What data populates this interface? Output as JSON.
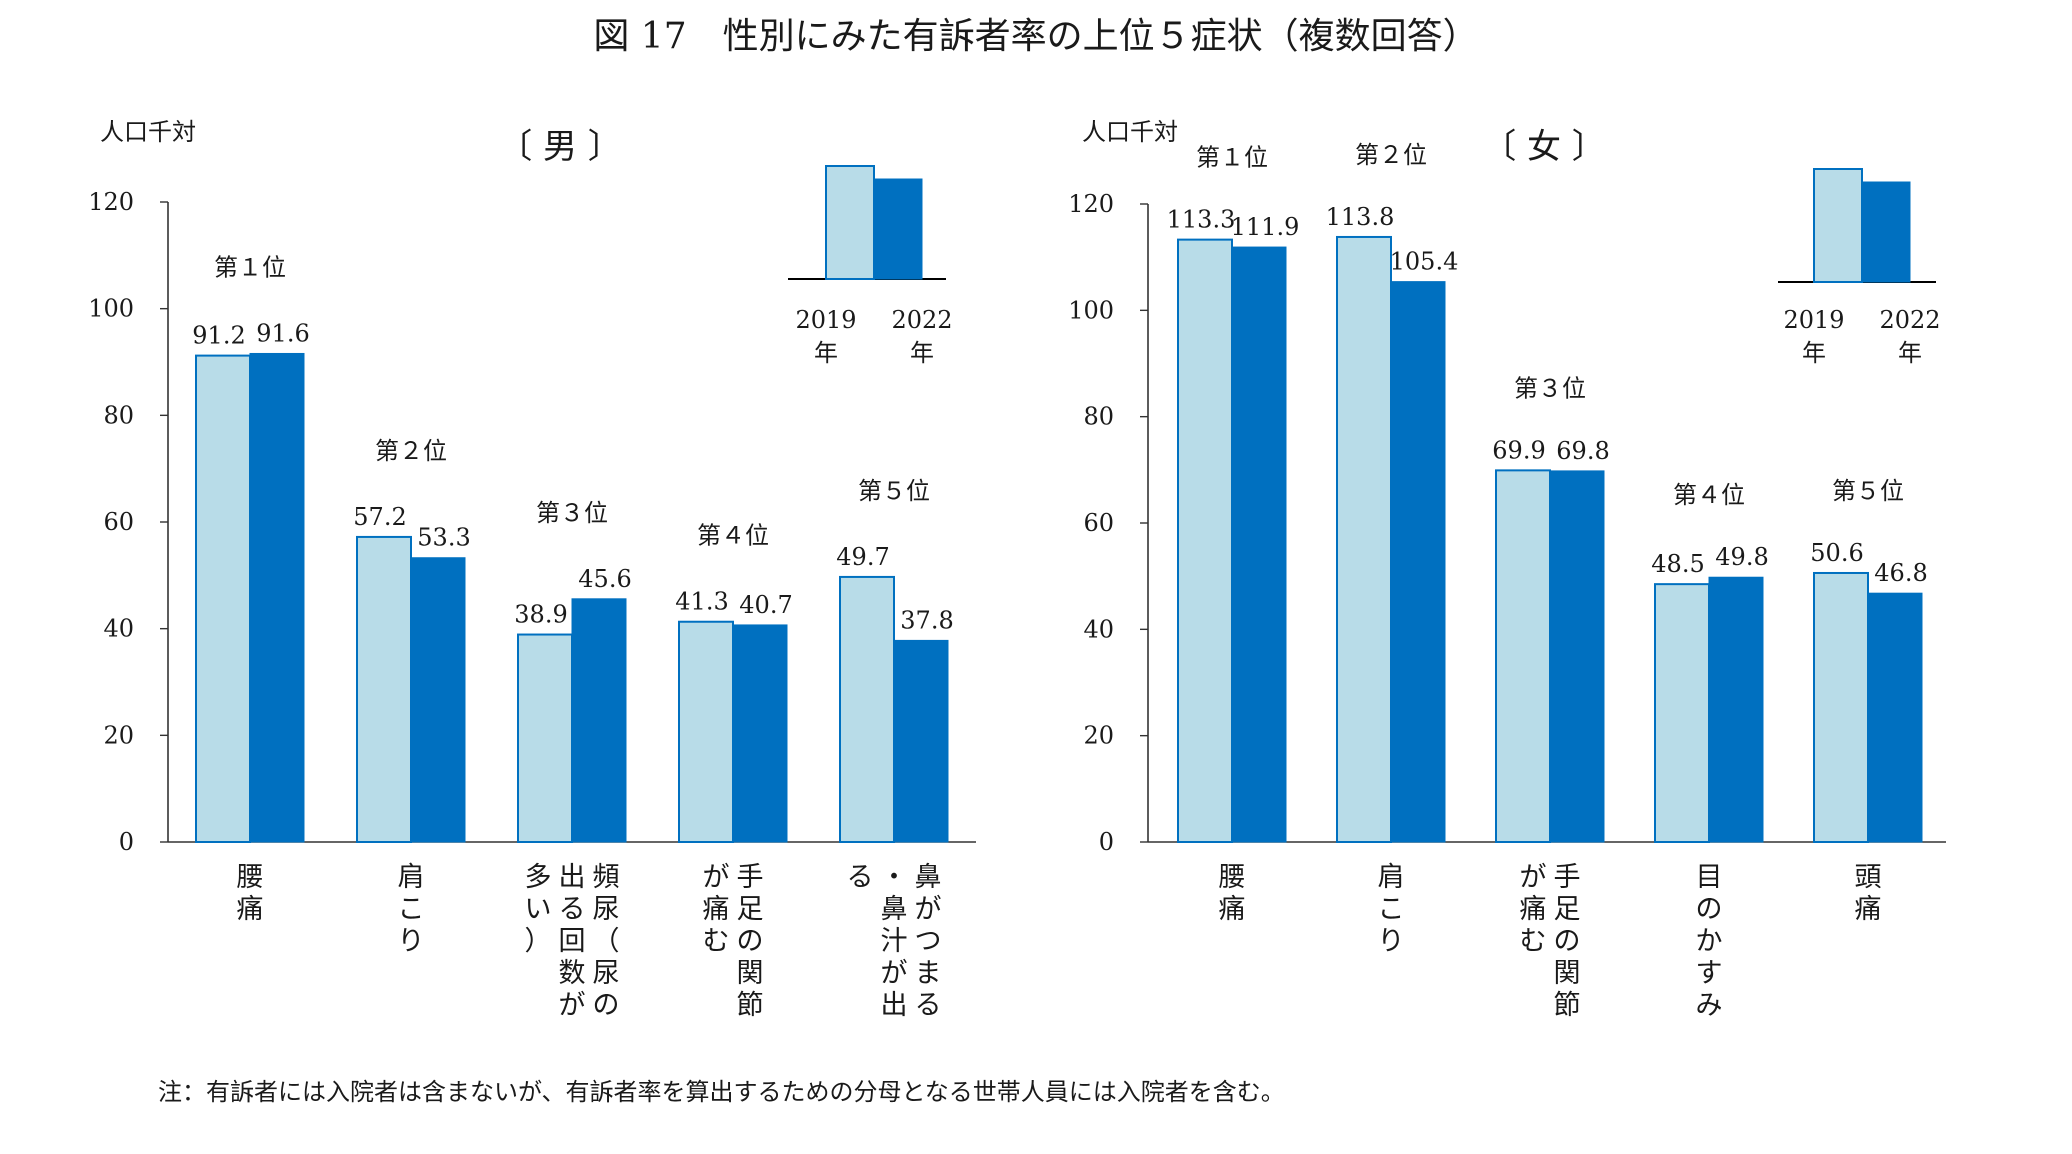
{
  "title": "図 17　性別にみた有訴者率の上位５症状（複数回答）",
  "note": "注：有訴者には入院者は含まないが、有訴者率を算出するための分母となる世帯人員には入院者を含む。",
  "colors": {
    "y2019": "#b8dce8",
    "y2022": "#0070c0",
    "outline": "#0070c0",
    "axis": "#333333"
  },
  "legend": {
    "y2019": [
      "2019",
      "年"
    ],
    "y2022": [
      "2022",
      "年"
    ]
  },
  "chart_data": [
    {
      "type": "bar",
      "panel_title": "〔 男 〕",
      "ylabel": "人口千対",
      "ylim": [
        0,
        120
      ],
      "yticks": [
        "0",
        "20",
        "40",
        "60",
        "80",
        "100",
        "120"
      ],
      "ranks": [
        "第１位",
        "第２位",
        "第３位",
        "第４位",
        "第５位"
      ],
      "categories": [
        [
          "腰",
          "痛"
        ],
        [
          "肩",
          "こ",
          "り"
        ],
        [
          "頻",
          "尿",
          "（",
          "尿",
          "の",
          "出",
          "る",
          "回",
          "数",
          "が",
          "多",
          "い",
          "）"
        ],
        [
          "手",
          "足",
          "の",
          "関",
          "節",
          "が",
          "痛",
          "む"
        ],
        [
          "鼻",
          "が",
          "つ",
          "ま",
          "る",
          "・",
          "鼻",
          "汁",
          "が",
          "出",
          "る"
        ]
      ],
      "series": [
        {
          "name": "2019年",
          "values": [
            91.2,
            57.2,
            38.9,
            41.3,
            49.7
          ],
          "labels": [
            "91.2",
            "57.2",
            "38.9",
            "41.3",
            "49.7"
          ]
        },
        {
          "name": "2022年",
          "values": [
            91.6,
            53.3,
            45.6,
            40.7,
            37.8
          ],
          "labels": [
            "91.6",
            "53.3",
            "45.6",
            "40.7",
            "37.8"
          ]
        }
      ]
    },
    {
      "type": "bar",
      "panel_title": "〔 女 〕",
      "ylabel": "人口千対",
      "ylim": [
        0,
        120
      ],
      "yticks": [
        "0",
        "20",
        "40",
        "60",
        "80",
        "100",
        "120"
      ],
      "ranks": [
        "第１位",
        "第２位",
        "第３位",
        "第４位",
        "第５位"
      ],
      "categories": [
        [
          "腰",
          "痛"
        ],
        [
          "肩",
          "こ",
          "り"
        ],
        [
          "手",
          "足",
          "の",
          "関",
          "節",
          "が",
          "痛",
          "む"
        ],
        [
          "目",
          "の",
          "か",
          "す",
          "み"
        ],
        [
          "頭",
          "痛"
        ]
      ],
      "series": [
        {
          "name": "2019年",
          "values": [
            113.3,
            113.8,
            69.9,
            48.5,
            50.6
          ],
          "labels": [
            "113.3",
            "113.8",
            "69.9",
            "48.5",
            "50.6"
          ]
        },
        {
          "name": "2022年",
          "values": [
            111.9,
            105.4,
            69.8,
            49.8,
            46.8
          ],
          "labels": [
            "111.9",
            "105.4",
            "69.8",
            "49.8",
            "46.8"
          ]
        }
      ]
    }
  ]
}
